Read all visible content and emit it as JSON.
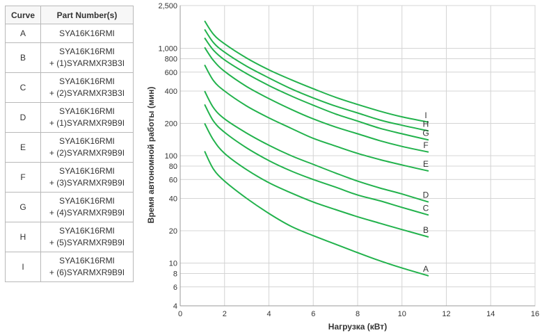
{
  "table": {
    "headers": [
      "Curve",
      "Part Number(s)"
    ],
    "rows": [
      {
        "curve": "A",
        "line1": "SYA16K16RMI",
        "line2": ""
      },
      {
        "curve": "B",
        "line1": "SYA16K16RMI",
        "line2": "+ (1)SYARMXR3B3I"
      },
      {
        "curve": "C",
        "line1": "SYA16K16RMI",
        "line2": "+ (2)SYARMXR3B3I"
      },
      {
        "curve": "D",
        "line1": "SYA16K16RMI",
        "line2": "+ (1)SYARMXR9B9I"
      },
      {
        "curve": "E",
        "line1": "SYA16K16RMI",
        "line2": "+ (2)SYARMXR9B9I"
      },
      {
        "curve": "F",
        "line1": "SYA16K16RMI",
        "line2": "+ (3)SYARMXR9B9I"
      },
      {
        "curve": "G",
        "line1": "SYA16K16RMI",
        "line2": "+ (4)SYARMXR9B9I"
      },
      {
        "curve": "H",
        "line1": "SYA16K16RMI",
        "line2": "+ (5)SYARMXR9B9I"
      },
      {
        "curve": "I",
        "line1": "SYA16K16RMI",
        "line2": "+ (6)SYARMXR9B9I"
      }
    ]
  },
  "chart_data": {
    "type": "line",
    "xlabel": "Нагрузка (кВт)",
    "ylabel": "Время автономной работы (мин)",
    "xlim": [
      0,
      16
    ],
    "ylim": [
      4,
      2500
    ],
    "yscale": "log",
    "grid": true,
    "line_color": "#22b24c",
    "xticks": [
      0,
      2,
      4,
      6,
      8,
      10,
      12,
      14,
      16
    ],
    "yticks": [
      {
        "value": 4,
        "label": "4"
      },
      {
        "value": 6,
        "label": "6"
      },
      {
        "value": 8,
        "label": "8"
      },
      {
        "value": 10,
        "label": "10"
      },
      {
        "value": 20,
        "label": "20"
      },
      {
        "value": 40,
        "label": "40"
      },
      {
        "value": 60,
        "label": "60"
      },
      {
        "value": 80,
        "label": "80"
      },
      {
        "value": 100,
        "label": "100"
      },
      {
        "value": 200,
        "label": "200"
      },
      {
        "value": 400,
        "label": "400"
      },
      {
        "value": 600,
        "label": "600"
      },
      {
        "value": 800,
        "label": "800"
      },
      {
        "value": 1000,
        "label": "1,000"
      },
      {
        "value": 2500,
        "label": "2,500"
      }
    ],
    "x": [
      1.1,
      1.5,
      2,
      3,
      4,
      5,
      6,
      7,
      8,
      9,
      10,
      11.2
    ],
    "series": [
      {
        "name": "A",
        "values": [
          110,
          75,
          58,
          40,
          29,
          22,
          18,
          15,
          12.5,
          10.5,
          9,
          7.6
        ]
      },
      {
        "name": "B",
        "values": [
          200,
          140,
          105,
          74,
          56,
          45,
          37,
          31.5,
          27,
          23.5,
          20.5,
          17.5
        ]
      },
      {
        "name": "C",
        "values": [
          300,
          210,
          165,
          118,
          90,
          72,
          60,
          51,
          43,
          38,
          33,
          28
        ]
      },
      {
        "name": "D",
        "values": [
          400,
          280,
          220,
          162,
          125,
          100,
          83,
          69,
          58,
          50,
          44,
          37
        ]
      },
      {
        "name": "E",
        "values": [
          700,
          500,
          400,
          290,
          225,
          180,
          145,
          123,
          105,
          92,
          82,
          72
        ]
      },
      {
        "name": "F",
        "values": [
          1020,
          770,
          610,
          440,
          340,
          270,
          220,
          185,
          160,
          138,
          122,
          108
        ]
      },
      {
        "name": "G",
        "values": [
          1250,
          960,
          780,
          580,
          450,
          360,
          295,
          245,
          210,
          180,
          160,
          140
        ]
      },
      {
        "name": "H",
        "values": [
          1500,
          1130,
          920,
          680,
          530,
          420,
          345,
          290,
          250,
          215,
          192,
          170
        ]
      },
      {
        "name": "I",
        "values": [
          1800,
          1350,
          1100,
          810,
          630,
          510,
          420,
          350,
          300,
          260,
          230,
          205
        ]
      }
    ]
  }
}
